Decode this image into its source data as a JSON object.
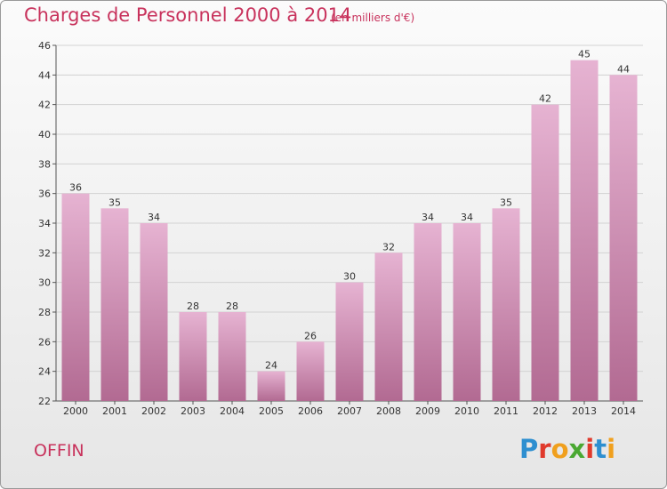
{
  "header": {
    "title": "Charges de Personnel 2000 à 2014",
    "subtitle": "(en milliers d'€)"
  },
  "footer": {
    "commune": "OFFIN",
    "logo": "Proxiti"
  },
  "colors": {
    "title": "#c8325c",
    "bar_top": "#e6b3d2",
    "bar_bottom": "#b26a92",
    "grid": "#d2d2d2",
    "axis": "#555555"
  },
  "chart_data": {
    "type": "bar",
    "title": "Charges de Personnel 2000 à 2014",
    "subtitle": "(en milliers d'€)",
    "xlabel": "",
    "ylabel": "",
    "categories": [
      "2000",
      "2001",
      "2002",
      "2003",
      "2004",
      "2005",
      "2006",
      "2007",
      "2008",
      "2009",
      "2010",
      "2011",
      "2012",
      "2013",
      "2014"
    ],
    "values": [
      36,
      35,
      34,
      28,
      28,
      24,
      26,
      30,
      32,
      34,
      34,
      35,
      42,
      45,
      44
    ],
    "ylim": [
      22,
      46
    ],
    "yticks": [
      22,
      24,
      26,
      28,
      30,
      32,
      34,
      36,
      38,
      40,
      42,
      44,
      46
    ],
    "grid": true,
    "data_labels": true
  }
}
